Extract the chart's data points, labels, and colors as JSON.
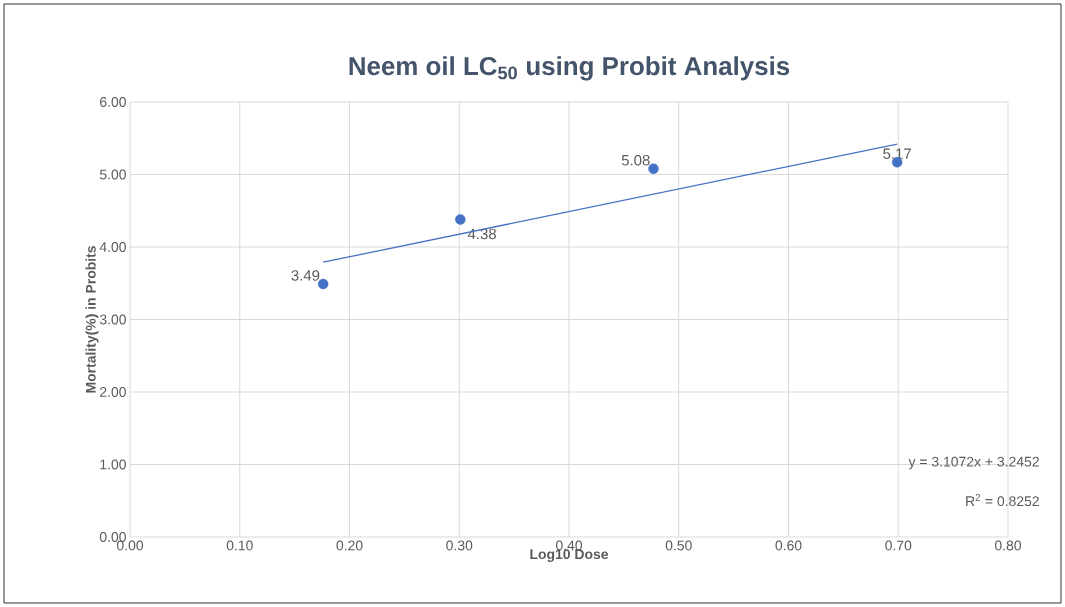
{
  "chart_data": {
    "type": "scatter",
    "title": "Neem oil LC$_{50}$ using Probit Analysis",
    "xlabel": "Log10 Dose",
    "ylabel": "Mortality(%) in Probits",
    "series": [
      {
        "x": [
          0.176,
          0.301,
          0.477,
          0.699
        ],
        "values": [
          3.49,
          4.38,
          5.08,
          5.17
        ],
        "value_labels": [
          "3.49",
          "4.38",
          "5.08",
          "5.17"
        ],
        "color": "#4472c4",
        "marker": "circle"
      },
      {
        "type": "line",
        "x": [
          0.176,
          0.699
        ],
        "values": [
          3.79,
          5.42
        ],
        "color": "#4472c4",
        "marker": "none"
      }
    ],
    "annotations": [
      "y = 3.1072x + 3.2452",
      "R$^{2}$ = 0.8252"
    ],
    "xlim": [
      0,
      0.8
    ],
    "ylim": [
      0,
      6
    ],
    "xticks": [
      {
        "value": 0,
        "label": "0.00"
      },
      {
        "value": 0.1,
        "label": "0.10"
      },
      {
        "value": 0.2,
        "label": "0.20"
      },
      {
        "value": 0.3,
        "label": "0.30"
      },
      {
        "value": 0.4,
        "label": "0.40"
      },
      {
        "value": 0.5,
        "label": "0.50"
      },
      {
        "value": 0.6,
        "label": "0.60"
      },
      {
        "value": 0.7,
        "label": "0.70"
      },
      {
        "value": 0.8,
        "label": "0.80"
      }
    ],
    "yticks": [
      {
        "value": 0,
        "label": "0.00"
      },
      {
        "value": 1,
        "label": "1.00"
      },
      {
        "value": 2,
        "label": "2.00"
      },
      {
        "value": 3,
        "label": "3.00"
      },
      {
        "value": 4,
        "label": "4.00"
      },
      {
        "value": 5,
        "label": "5.00"
      },
      {
        "value": 6,
        "label": "6.00"
      }
    ],
    "grid": true
  }
}
